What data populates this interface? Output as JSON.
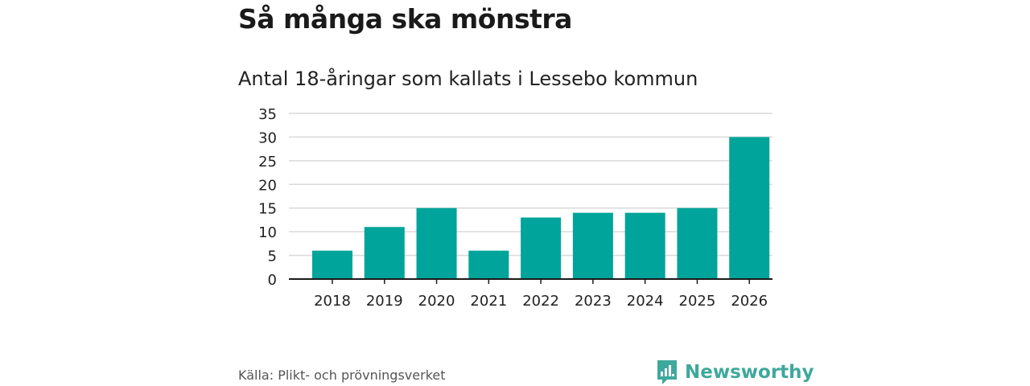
{
  "header": {
    "title": "Så många ska mönstra",
    "subtitle": "Antal 18-åringar som kallats i Lessebo kommun"
  },
  "footer": {
    "source": "Källa: Plikt- och prövningsverket",
    "brand": "Newsworthy"
  },
  "colors": {
    "bar": "#00a49a",
    "grid": "#d9d9d9",
    "axis": "#1a1a1a",
    "brand": "#3fa89c"
  },
  "chart_data": {
    "type": "bar",
    "title": "Så många ska mönstra",
    "subtitle": "Antal 18-åringar som kallats i Lessebo kommun",
    "categories": [
      "2018",
      "2019",
      "2020",
      "2021",
      "2022",
      "2023",
      "2024",
      "2025",
      "2026"
    ],
    "values": [
      6,
      11,
      15,
      6,
      13,
      14,
      14,
      15,
      30
    ],
    "yticks": [
      0,
      5,
      10,
      15,
      20,
      25,
      30,
      35
    ],
    "ylim": [
      0,
      35
    ],
    "xlabel": "",
    "ylabel": "",
    "grid": true
  }
}
